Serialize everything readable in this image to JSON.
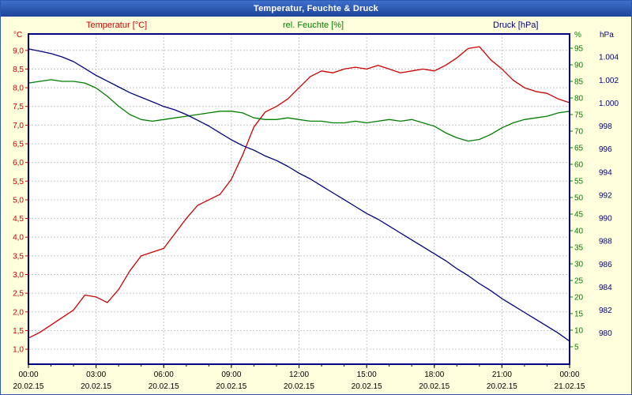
{
  "window": {
    "title": "Temperatur, Feuchte & Druck",
    "background_color": "#ffffde",
    "titlebar_color": "#2b58b0",
    "title_text_color": "#ffffff"
  },
  "chart_data": {
    "type": "line",
    "title": "Temperatur, Feuchte & Druck",
    "x_step": 0.5,
    "colors": {
      "grid": "#c6c6c6",
      "border": "#000080",
      "plot_bg": "#ffffff",
      "axis_text": "#000000"
    },
    "grid": {
      "vertical_hours": [
        3,
        6,
        9,
        12,
        15,
        18,
        21
      ],
      "style": "dashed"
    },
    "x_axis": {
      "tick_hours": [
        0,
        3,
        6,
        9,
        12,
        15,
        18,
        21,
        24
      ],
      "time_labels": [
        "00:00",
        "03:00",
        "06:00",
        "09:00",
        "12:00",
        "15:00",
        "18:00",
        "21:00",
        "00:00"
      ],
      "date_labels": [
        "20.02.15",
        "20.02.15",
        "20.02.15",
        "20.02.15",
        "20.02.15",
        "20.02.15",
        "20.02.15",
        "20.02.15",
        "21.02.15"
      ]
    },
    "axes": {
      "temperature": {
        "title": "Temperatur [°C]",
        "unit": "°C",
        "color": "#cc0000",
        "side": "left",
        "range": [
          0.6,
          9.44
        ],
        "tick_values": [
          9,
          8.5,
          8,
          7.5,
          7,
          6.5,
          6,
          5.5,
          5,
          4.5,
          4,
          3.5,
          3,
          2.5,
          2,
          1.5,
          1
        ],
        "tick_labels": [
          "9,0",
          "8,5",
          "8,0",
          "7,5",
          "7,0",
          "6,5",
          "6,0",
          "5,5",
          "5,0",
          "4,5",
          "4,0",
          "3,5",
          "3,0",
          "2,5",
          "2,0",
          "1,5",
          "1,0"
        ]
      },
      "humidity": {
        "title": "rel. Feuchte [%]",
        "unit": "%",
        "color": "#008000",
        "side": "right-inner",
        "range": [
          -0.25,
          99.3
        ],
        "tick_values": [
          95,
          90,
          85,
          80,
          75,
          70,
          65,
          60,
          55,
          50,
          45,
          40,
          35,
          30,
          25,
          20,
          15,
          10,
          5
        ],
        "tick_labels": [
          "95",
          "90",
          "85",
          "80",
          "75",
          "70",
          "65",
          "60",
          "55",
          "50",
          "45",
          "40",
          "35",
          "30",
          "25",
          "20",
          "15",
          "10",
          "5"
        ]
      },
      "pressure": {
        "title": "Druck [hPa]",
        "unit": "hPa",
        "color": "#000080",
        "side": "right-outer",
        "range": [
          977.3,
          1006.0
        ],
        "tick_values": [
          1004,
          1002,
          1000,
          998,
          996,
          994,
          992,
          990,
          988,
          986,
          984,
          982,
          980
        ],
        "tick_labels": [
          "1.004",
          "1.002",
          "1.000",
          "998",
          "996",
          "994",
          "992",
          "990",
          "988",
          "986",
          "984",
          "982",
          "980"
        ]
      }
    },
    "series": [
      {
        "key": "temperature",
        "name": "Temperatur [°C]",
        "axis": "temperature",
        "color": "#cc0000",
        "values": [
          1.3,
          1.45,
          1.65,
          1.85,
          2.05,
          2.45,
          2.4,
          2.25,
          2.6,
          3.1,
          3.5,
          3.6,
          3.7,
          4.1,
          4.5,
          4.85,
          5.0,
          5.15,
          5.55,
          6.2,
          6.95,
          7.35,
          7.5,
          7.7,
          8.0,
          8.3,
          8.45,
          8.4,
          8.5,
          8.55,
          8.5,
          8.6,
          8.5,
          8.4,
          8.45,
          8.5,
          8.45,
          8.6,
          8.8,
          9.05,
          9.1,
          8.75,
          8.5,
          8.2,
          8.0,
          7.9,
          7.85,
          7.7,
          7.6
        ]
      },
      {
        "key": "humidity",
        "name": "rel. Feuchte [%]",
        "axis": "humidity",
        "color": "#008000",
        "values": [
          84.5,
          85,
          85.5,
          85,
          85,
          84.5,
          83,
          80.5,
          77.5,
          75,
          73.5,
          73,
          73.5,
          74,
          74.5,
          75,
          75.5,
          76,
          76,
          75.5,
          74,
          73.5,
          73.5,
          74,
          73.5,
          73,
          73,
          72.5,
          72.5,
          73,
          72.5,
          73,
          73.5,
          73,
          73.5,
          72.5,
          71.5,
          69.5,
          68,
          67,
          67.5,
          69,
          71,
          72.5,
          73.5,
          74,
          74.5,
          75.5,
          76
        ]
      },
      {
        "key": "pressure",
        "name": "Druck [hPa]",
        "axis": "pressure",
        "color": "#000080",
        "values": [
          1004.7,
          1004.5,
          1004.3,
          1004.0,
          1003.6,
          1003.0,
          1002.4,
          1001.9,
          1001.4,
          1000.9,
          1000.5,
          1000.1,
          999.7,
          999.4,
          999.0,
          998.5,
          998.0,
          997.4,
          996.8,
          996.3,
          995.9,
          995.4,
          995.0,
          994.5,
          993.9,
          993.4,
          992.8,
          992.2,
          991.6,
          991.0,
          990.4,
          989.9,
          989.3,
          988.7,
          988.1,
          987.5,
          986.9,
          986.3,
          985.6,
          985.0,
          984.3,
          983.7,
          983.0,
          982.4,
          981.8,
          981.2,
          980.6,
          980.0,
          979.3
        ]
      }
    ]
  }
}
